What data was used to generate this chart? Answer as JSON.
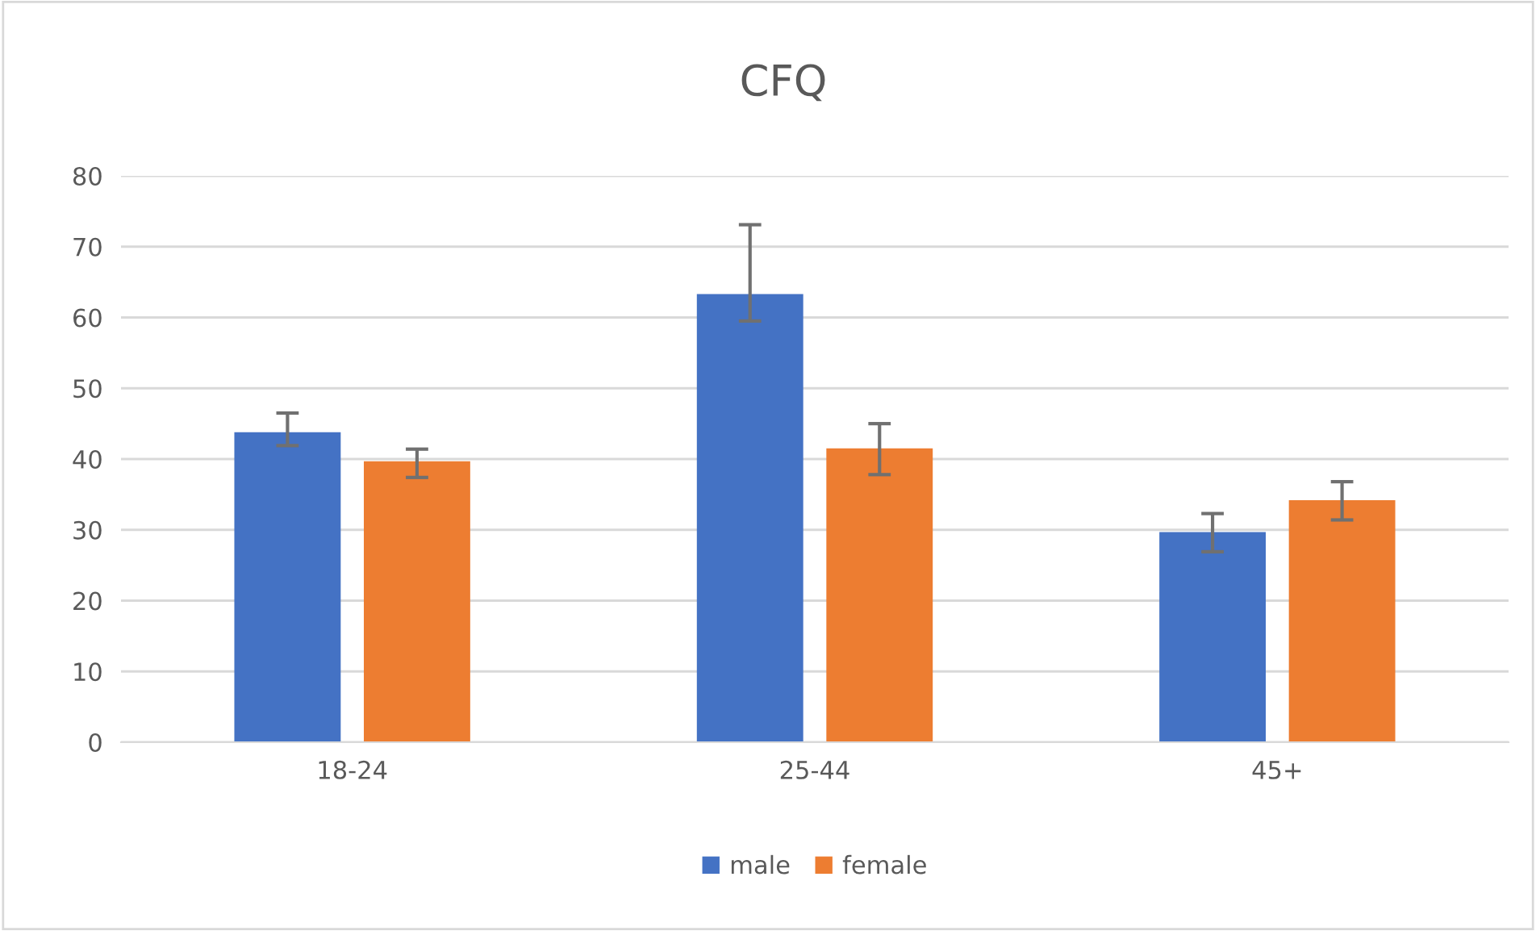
{
  "chart_data": {
    "type": "bar",
    "title": "CFQ",
    "categories": [
      "18-24",
      "25-44",
      "45+"
    ],
    "series": [
      {
        "name": "male",
        "color": "#4472c4",
        "values": [
          43.8,
          63.3,
          29.7
        ],
        "errors": [
          [
            41.9,
            46.5
          ],
          [
            59.5,
            73.1
          ],
          [
            26.9,
            32.3
          ]
        ]
      },
      {
        "name": "female",
        "color": "#ed7d31",
        "values": [
          39.7,
          41.5,
          34.2
        ],
        "errors": [
          [
            37.4,
            41.4
          ],
          [
            37.8,
            45.0
          ],
          [
            31.4,
            36.8
          ]
        ]
      }
    ],
    "ylim": [
      0,
      80
    ],
    "yticks": [
      0,
      10,
      20,
      30,
      40,
      50,
      60,
      70,
      80
    ],
    "grid": "y",
    "legend": "bottom"
  }
}
